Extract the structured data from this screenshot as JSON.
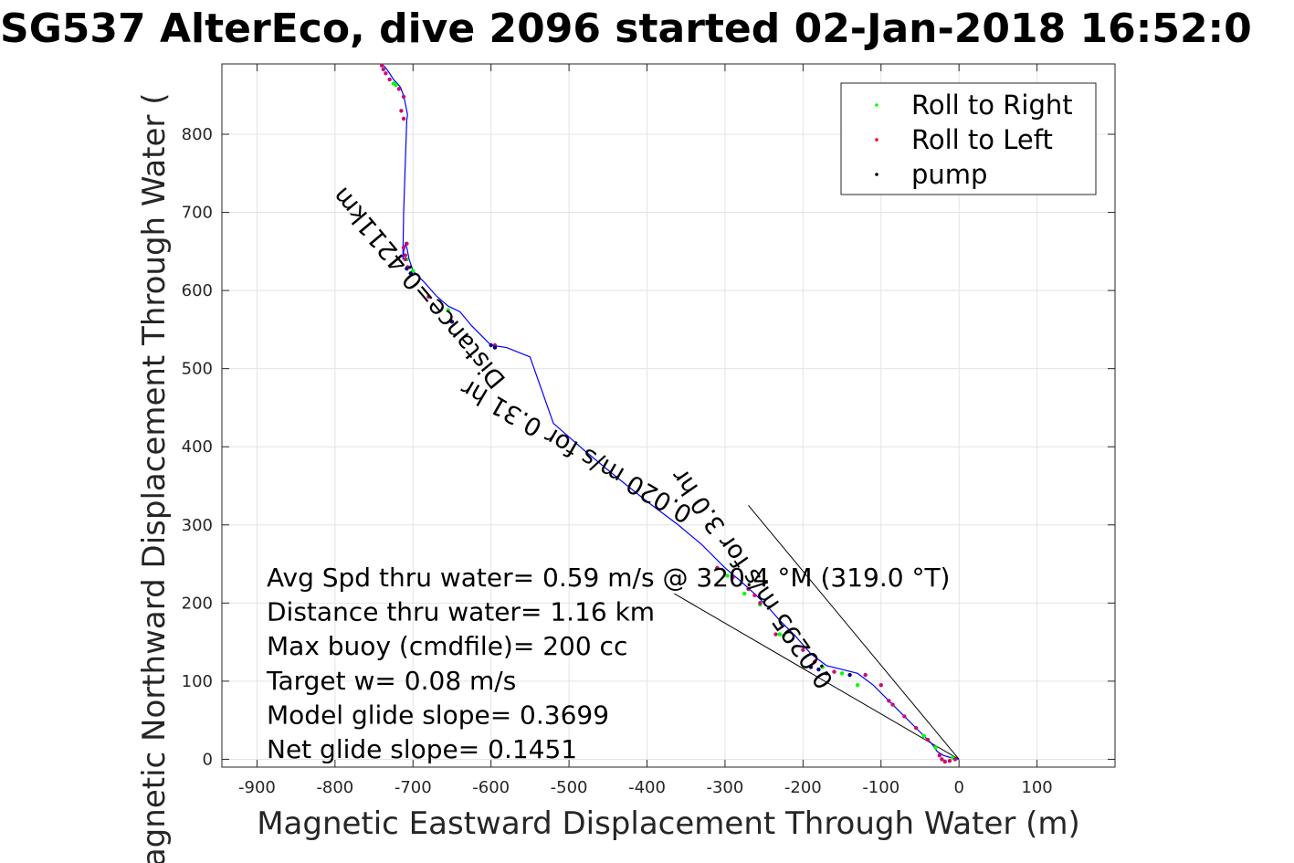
{
  "chart_data": {
    "type": "line",
    "title": "SG537 AlterEco, dive 2096 started 02-Jan-2018 16:52:0",
    "xlabel": "Magnetic Eastward Displacement Through Water (m)",
    "ylabel": "Magnetic Northward Displacement Through Water (",
    "xlim": [
      -945,
      200
    ],
    "ylim": [
      -10,
      890
    ],
    "xticks": [
      -900,
      -800,
      -700,
      -600,
      -500,
      -400,
      -300,
      -200,
      -100,
      0,
      100
    ],
    "xtick_labels": [
      "-900",
      "-800",
      "-700",
      "-600",
      "-500",
      "-400",
      "-300",
      "-200",
      "-100",
      "0",
      "100"
    ],
    "yticks": [
      0,
      100,
      200,
      300,
      400,
      500,
      600,
      700,
      800
    ],
    "ytick_labels": [
      "0",
      "100",
      "200",
      "300",
      "400",
      "500",
      "600",
      "700",
      "800"
    ],
    "grid": true,
    "legend_position": "top-right",
    "track": {
      "color": "#0000ff",
      "x": [
        0,
        -10,
        -20,
        -28,
        -35,
        -50,
        -70,
        -90,
        -110,
        -130,
        -150,
        -170,
        -190,
        -210,
        -230,
        -245,
        -260,
        -280,
        -300,
        -330,
        -360,
        -400,
        -440,
        -480,
        -520,
        -550,
        -580,
        -600,
        -625,
        -640,
        -655,
        -670,
        -685,
        -700,
        -705,
        -708,
        -710,
        -712,
        -713,
        -712,
        -710,
        -708,
        -707,
        -709,
        -711,
        -713,
        -716,
        -720,
        -725,
        -730,
        -735,
        -740
      ],
      "y": [
        0,
        2,
        5,
        10,
        20,
        35,
        55,
        75,
        95,
        110,
        115,
        120,
        135,
        158,
        178,
        195,
        210,
        228,
        245,
        275,
        300,
        330,
        362,
        395,
        430,
        515,
        527,
        530,
        555,
        573,
        580,
        593,
        610,
        625,
        640,
        655,
        660,
        650,
        640,
        700,
        760,
        818,
        825,
        835,
        845,
        852,
        860,
        865,
        870,
        878,
        885,
        890
      ]
    },
    "series": [
      {
        "name": "Roll to Right",
        "color": "#00ff00",
        "x": [
          -8,
          -30,
          -45,
          -130,
          -150,
          -175,
          -225,
          -230,
          -255,
          -275,
          -297,
          -655,
          -700,
          -708,
          -722,
          -725
        ],
        "y": [
          2,
          15,
          30,
          95,
          110,
          118,
          158,
          160,
          198,
          212,
          235,
          575,
          625,
          640,
          863,
          865
        ]
      },
      {
        "name": "Roll to Left",
        "color": "#ff0000",
        "x": [
          -5,
          -12,
          -18,
          -22,
          -25,
          -40,
          -55,
          -70,
          -85,
          -90,
          -100,
          -120,
          -160,
          -185,
          -200,
          -235,
          -255,
          -262,
          -270,
          -290,
          -310,
          -595,
          -680,
          -710,
          -712,
          -708,
          -710,
          -707,
          -712,
          -715,
          -735,
          -738,
          -740,
          -730,
          -718,
          -712
        ],
        "y": [
          0,
          -2,
          -3,
          0,
          5,
          25,
          40,
          55,
          70,
          75,
          95,
          108,
          112,
          125,
          140,
          160,
          200,
          210,
          218,
          233,
          245,
          530,
          592,
          640,
          655,
          660,
          645,
          630,
          820,
          830,
          878,
          883,
          888,
          870,
          858,
          848
        ],
        "point_color": "#c8106e"
      },
      {
        "name": "pump",
        "color": "#000000",
        "x": [
          -140,
          -170,
          -180,
          -190,
          -595,
          -600,
          -650,
          -708,
          -703
        ],
        "y": [
          108,
          110,
          115,
          118,
          527,
          530,
          560,
          628,
          622
        ],
        "point_color": "#000080"
      }
    ],
    "current_lines": [
      {
        "x": [
          0,
          -270
        ],
        "y": [
          0,
          325
        ]
      },
      {
        "x": [
          0,
          -365
        ],
        "y": [
          0,
          212
        ]
      }
    ],
    "annotations": [
      {
        "text": "Distance=0.4211km",
        "x": -580,
        "y": 486,
        "angle_deg": 50
      },
      {
        "text": "0.020 m/s for 0.31 hr",
        "x": -340,
        "y": 320,
        "angle_deg": 30
      },
      {
        "text": "0.0295 m/s for 3.0 hr",
        "x": -160,
        "y": 100,
        "angle_deg": 55
      }
    ],
    "stats": [
      "Avg Spd thru water=  0.59 m/s @ 320.4 °M (319.0 °T)",
      "Distance thru water=  1.16 km",
      "Max buoy (cmdfile)= 200 cc",
      "Target w= 0.08 m/s",
      "Model glide slope= 0.3699",
      "Net glide slope= 0.1451"
    ]
  }
}
